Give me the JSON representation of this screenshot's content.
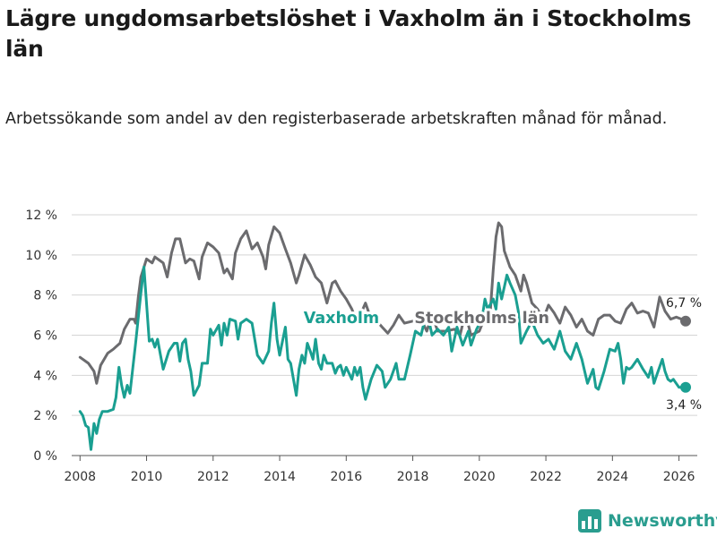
{
  "title": "Lägre ungdomsarbetslöshet i Vaxholm än i Stockholms län",
  "subtitle": "Arbetssökande som andel av den registerbaserade arbetskraften månad för månad.",
  "brand": {
    "name": "Newsworthy",
    "icon": "bar-chart-logo-icon",
    "color": "#2a9d8f"
  },
  "chart_data": {
    "type": "line",
    "x_unit": "year (monthly data)",
    "xlim": [
      2007.75,
      2026.55
    ],
    "ylim": [
      0,
      12
    ],
    "y_ticks": [
      {
        "value": 0,
        "label": "0 %"
      },
      {
        "value": 2,
        "label": "2 %"
      },
      {
        "value": 4,
        "label": "4 %"
      },
      {
        "value": 6,
        "label": "6 %"
      },
      {
        "value": 8,
        "label": "8 %"
      },
      {
        "value": 10,
        "label": "10 %"
      },
      {
        "value": 12,
        "label": "12 %"
      }
    ],
    "x_ticks": [
      {
        "value": 2008,
        "label": "2008"
      },
      {
        "value": 2010,
        "label": "2010"
      },
      {
        "value": 2012,
        "label": "2012"
      },
      {
        "value": 2014,
        "label": "2014"
      },
      {
        "value": 2016,
        "label": "2016"
      },
      {
        "value": 2018,
        "label": "2018"
      },
      {
        "value": 2020,
        "label": "2020"
      },
      {
        "value": 2022,
        "label": "2022"
      },
      {
        "value": 2024,
        "label": "2024"
      },
      {
        "value": 2026,
        "label": "2026"
      }
    ],
    "grid": "horizontal",
    "series": [
      {
        "name": "Stockholms län",
        "color": "#6b6b6e",
        "label_at": [
          2018.05,
          6.6
        ],
        "end_label": "6,7 %",
        "points": [
          [
            2008.0,
            4.9
          ],
          [
            2008.25,
            4.6
          ],
          [
            2008.42,
            4.2
          ],
          [
            2008.5,
            3.6
          ],
          [
            2008.62,
            4.5
          ],
          [
            2008.83,
            5.1
          ],
          [
            2009.0,
            5.3
          ],
          [
            2009.2,
            5.6
          ],
          [
            2009.33,
            6.3
          ],
          [
            2009.5,
            6.8
          ],
          [
            2009.62,
            6.8
          ],
          [
            2009.67,
            6.6
          ],
          [
            2009.75,
            7.9
          ],
          [
            2009.83,
            8.9
          ],
          [
            2010.0,
            9.8
          ],
          [
            2010.17,
            9.6
          ],
          [
            2010.25,
            9.9
          ],
          [
            2010.42,
            9.7
          ],
          [
            2010.5,
            9.6
          ],
          [
            2010.62,
            8.9
          ],
          [
            2010.75,
            10.1
          ],
          [
            2010.87,
            10.8
          ],
          [
            2011.0,
            10.8
          ],
          [
            2011.17,
            9.6
          ],
          [
            2011.3,
            9.8
          ],
          [
            2011.42,
            9.7
          ],
          [
            2011.58,
            8.8
          ],
          [
            2011.67,
            9.9
          ],
          [
            2011.83,
            10.6
          ],
          [
            2012.0,
            10.4
          ],
          [
            2012.17,
            10.1
          ],
          [
            2012.33,
            9.1
          ],
          [
            2012.42,
            9.3
          ],
          [
            2012.58,
            8.8
          ],
          [
            2012.67,
            10.1
          ],
          [
            2012.83,
            10.8
          ],
          [
            2013.0,
            11.2
          ],
          [
            2013.17,
            10.3
          ],
          [
            2013.33,
            10.6
          ],
          [
            2013.5,
            9.9
          ],
          [
            2013.58,
            9.3
          ],
          [
            2013.67,
            10.5
          ],
          [
            2013.83,
            11.4
          ],
          [
            2014.0,
            11.1
          ],
          [
            2014.17,
            10.3
          ],
          [
            2014.33,
            9.6
          ],
          [
            2014.5,
            8.6
          ],
          [
            2014.58,
            9.0
          ],
          [
            2014.75,
            10.0
          ],
          [
            2014.92,
            9.5
          ],
          [
            2015.08,
            8.9
          ],
          [
            2015.25,
            8.6
          ],
          [
            2015.42,
            7.6
          ],
          [
            2015.58,
            8.6
          ],
          [
            2015.67,
            8.7
          ],
          [
            2015.83,
            8.2
          ],
          [
            2016.0,
            7.8
          ],
          [
            2016.17,
            7.3
          ],
          [
            2016.33,
            6.6
          ],
          [
            2016.42,
            7.0
          ],
          [
            2016.58,
            7.6
          ],
          [
            2016.75,
            6.8
          ],
          [
            2016.92,
            6.7
          ],
          [
            2017.08,
            6.4
          ],
          [
            2017.25,
            6.1
          ],
          [
            2017.42,
            6.5
          ],
          [
            2017.58,
            7.0
          ],
          [
            2017.75,
            6.6
          ],
          [
            2018.0,
            6.7
          ],
          [
            2018.25,
            6.8
          ],
          [
            2018.42,
            6.2
          ],
          [
            2018.58,
            7.0
          ],
          [
            2018.75,
            6.2
          ],
          [
            2019.0,
            6.2
          ],
          [
            2019.25,
            6.3
          ],
          [
            2019.42,
            6.0
          ],
          [
            2019.58,
            7.1
          ],
          [
            2019.75,
            6.0
          ],
          [
            2020.0,
            6.2
          ],
          [
            2020.17,
            6.9
          ],
          [
            2020.33,
            7.2
          ],
          [
            2020.42,
            9.3
          ],
          [
            2020.5,
            10.9
          ],
          [
            2020.58,
            11.6
          ],
          [
            2020.67,
            11.4
          ],
          [
            2020.75,
            10.2
          ],
          [
            2020.92,
            9.4
          ],
          [
            2021.08,
            9.0
          ],
          [
            2021.25,
            8.2
          ],
          [
            2021.33,
            9.0
          ],
          [
            2021.42,
            8.6
          ],
          [
            2021.58,
            7.6
          ],
          [
            2021.75,
            7.3
          ],
          [
            2021.92,
            6.8
          ],
          [
            2022.08,
            7.5
          ],
          [
            2022.25,
            7.1
          ],
          [
            2022.42,
            6.6
          ],
          [
            2022.58,
            7.4
          ],
          [
            2022.75,
            7.0
          ],
          [
            2022.92,
            6.4
          ],
          [
            2023.08,
            6.8
          ],
          [
            2023.25,
            6.2
          ],
          [
            2023.42,
            6.0
          ],
          [
            2023.58,
            6.8
          ],
          [
            2023.75,
            7.0
          ],
          [
            2023.92,
            7.0
          ],
          [
            2024.08,
            6.7
          ],
          [
            2024.25,
            6.6
          ],
          [
            2024.42,
            7.3
          ],
          [
            2024.58,
            7.6
          ],
          [
            2024.75,
            7.1
          ],
          [
            2024.92,
            7.2
          ],
          [
            2025.08,
            7.1
          ],
          [
            2025.25,
            6.4
          ],
          [
            2025.42,
            7.9
          ],
          [
            2025.58,
            7.2
          ],
          [
            2025.75,
            6.8
          ],
          [
            2025.92,
            6.9
          ],
          [
            2026.08,
            6.8
          ],
          [
            2026.2,
            6.7
          ]
        ]
      },
      {
        "name": "Vaxholm",
        "color": "#1a9f91",
        "label_at": [
          2014.72,
          6.6
        ],
        "end_label": "3,4 %",
        "points": [
          [
            2008.0,
            2.2
          ],
          [
            2008.08,
            2.0
          ],
          [
            2008.17,
            1.5
          ],
          [
            2008.25,
            1.4
          ],
          [
            2008.33,
            0.3
          ],
          [
            2008.42,
            1.6
          ],
          [
            2008.5,
            1.1
          ],
          [
            2008.58,
            1.8
          ],
          [
            2008.67,
            2.2
          ],
          [
            2008.83,
            2.2
          ],
          [
            2009.0,
            2.3
          ],
          [
            2009.08,
            2.9
          ],
          [
            2009.17,
            4.4
          ],
          [
            2009.25,
            3.5
          ],
          [
            2009.33,
            2.9
          ],
          [
            2009.42,
            3.5
          ],
          [
            2009.5,
            3.1
          ],
          [
            2009.67,
            5.6
          ],
          [
            2009.83,
            8.1
          ],
          [
            2009.92,
            9.4
          ],
          [
            2010.08,
            5.7
          ],
          [
            2010.17,
            5.8
          ],
          [
            2010.25,
            5.4
          ],
          [
            2010.33,
            5.8
          ],
          [
            2010.42,
            5.0
          ],
          [
            2010.5,
            4.3
          ],
          [
            2010.67,
            5.2
          ],
          [
            2010.83,
            5.6
          ],
          [
            2010.92,
            5.6
          ],
          [
            2011.0,
            4.7
          ],
          [
            2011.08,
            5.6
          ],
          [
            2011.17,
            5.8
          ],
          [
            2011.25,
            4.8
          ],
          [
            2011.33,
            4.2
          ],
          [
            2011.42,
            3.0
          ],
          [
            2011.58,
            3.5
          ],
          [
            2011.67,
            4.6
          ],
          [
            2011.83,
            4.6
          ],
          [
            2011.92,
            6.3
          ],
          [
            2012.0,
            6.0
          ],
          [
            2012.17,
            6.5
          ],
          [
            2012.25,
            5.5
          ],
          [
            2012.33,
            6.6
          ],
          [
            2012.42,
            6.0
          ],
          [
            2012.5,
            6.8
          ],
          [
            2012.67,
            6.7
          ],
          [
            2012.75,
            5.8
          ],
          [
            2012.83,
            6.6
          ],
          [
            2013.0,
            6.8
          ],
          [
            2013.17,
            6.6
          ],
          [
            2013.33,
            5.0
          ],
          [
            2013.5,
            4.6
          ],
          [
            2013.67,
            5.2
          ],
          [
            2013.75,
            6.6
          ],
          [
            2013.83,
            7.6
          ],
          [
            2013.92,
            5.8
          ],
          [
            2014.0,
            5.0
          ],
          [
            2014.17,
            6.4
          ],
          [
            2014.25,
            4.8
          ],
          [
            2014.33,
            4.6
          ],
          [
            2014.5,
            3.0
          ],
          [
            2014.58,
            4.3
          ],
          [
            2014.67,
            5.0
          ],
          [
            2014.75,
            4.6
          ],
          [
            2014.83,
            5.6
          ],
          [
            2014.92,
            5.2
          ],
          [
            2015.0,
            4.8
          ],
          [
            2015.08,
            5.8
          ],
          [
            2015.17,
            4.6
          ],
          [
            2015.25,
            4.3
          ],
          [
            2015.33,
            5.0
          ],
          [
            2015.42,
            4.6
          ],
          [
            2015.58,
            4.6
          ],
          [
            2015.67,
            4.1
          ],
          [
            2015.75,
            4.4
          ],
          [
            2015.83,
            4.5
          ],
          [
            2015.92,
            4.0
          ],
          [
            2016.0,
            4.4
          ],
          [
            2016.17,
            3.8
          ],
          [
            2016.25,
            4.4
          ],
          [
            2016.33,
            4.0
          ],
          [
            2016.42,
            4.4
          ],
          [
            2016.5,
            3.4
          ],
          [
            2016.58,
            2.8
          ],
          [
            2016.75,
            3.8
          ],
          [
            2016.92,
            4.5
          ],
          [
            2017.08,
            4.2
          ],
          [
            2017.17,
            3.4
          ],
          [
            2017.33,
            3.8
          ],
          [
            2017.5,
            4.6
          ],
          [
            2017.58,
            3.8
          ],
          [
            2017.75,
            3.8
          ],
          [
            2017.92,
            5.0
          ],
          [
            2018.08,
            6.2
          ],
          [
            2018.25,
            6.0
          ],
          [
            2018.42,
            7.2
          ],
          [
            2018.58,
            6.0
          ],
          [
            2018.75,
            6.3
          ],
          [
            2018.92,
            6.0
          ],
          [
            2019.08,
            6.4
          ],
          [
            2019.17,
            5.2
          ],
          [
            2019.33,
            6.4
          ],
          [
            2019.5,
            5.5
          ],
          [
            2019.67,
            6.2
          ],
          [
            2019.75,
            5.5
          ],
          [
            2019.92,
            6.3
          ],
          [
            2020.08,
            6.8
          ],
          [
            2020.17,
            7.8
          ],
          [
            2020.25,
            7.3
          ],
          [
            2020.42,
            7.8
          ],
          [
            2020.5,
            7.3
          ],
          [
            2020.58,
            8.6
          ],
          [
            2020.67,
            7.8
          ],
          [
            2020.75,
            8.4
          ],
          [
            2020.83,
            9.0
          ],
          [
            2020.92,
            8.6
          ],
          [
            2021.08,
            8.0
          ],
          [
            2021.17,
            7.2
          ],
          [
            2021.25,
            5.6
          ],
          [
            2021.42,
            6.2
          ],
          [
            2021.58,
            6.7
          ],
          [
            2021.75,
            6.0
          ],
          [
            2021.92,
            5.6
          ],
          [
            2022.08,
            5.8
          ],
          [
            2022.25,
            5.3
          ],
          [
            2022.42,
            6.2
          ],
          [
            2022.58,
            5.2
          ],
          [
            2022.75,
            4.8
          ],
          [
            2022.92,
            5.6
          ],
          [
            2023.08,
            4.8
          ],
          [
            2023.25,
            3.6
          ],
          [
            2023.42,
            4.3
          ],
          [
            2023.5,
            3.4
          ],
          [
            2023.58,
            3.3
          ],
          [
            2023.75,
            4.2
          ],
          [
            2023.92,
            5.3
          ],
          [
            2024.08,
            5.2
          ],
          [
            2024.17,
            5.6
          ],
          [
            2024.25,
            4.8
          ],
          [
            2024.33,
            3.6
          ],
          [
            2024.42,
            4.4
          ],
          [
            2024.5,
            4.3
          ],
          [
            2024.58,
            4.4
          ],
          [
            2024.75,
            4.8
          ],
          [
            2024.92,
            4.3
          ],
          [
            2025.08,
            3.9
          ],
          [
            2025.17,
            4.4
          ],
          [
            2025.25,
            3.6
          ],
          [
            2025.33,
            4.0
          ],
          [
            2025.5,
            4.8
          ],
          [
            2025.58,
            4.2
          ],
          [
            2025.67,
            3.8
          ],
          [
            2025.75,
            3.7
          ],
          [
            2025.83,
            3.8
          ],
          [
            2026.0,
            3.4
          ],
          [
            2026.2,
            3.4
          ]
        ]
      }
    ]
  }
}
